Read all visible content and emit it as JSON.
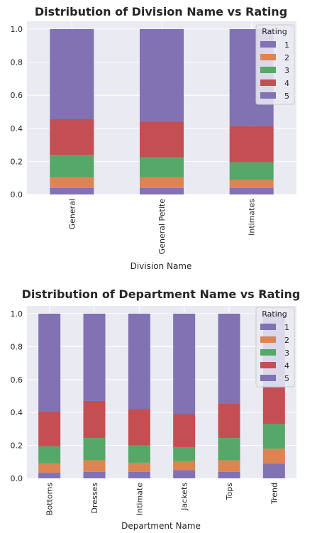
{
  "chart_data": [
    {
      "type": "bar",
      "stacked": true,
      "title": "Distribution of Division Name vs Rating",
      "xlabel": "Division Name",
      "ylabel": "",
      "ylim": [
        0,
        1.0
      ],
      "yticks": [
        "0.0",
        "0.2",
        "0.4",
        "0.6",
        "0.8",
        "1.0"
      ],
      "categories": [
        "General",
        "General Petite",
        "Intimates"
      ],
      "grid": true,
      "legend": {
        "title": "Rating",
        "placement": "top-right",
        "labels": [
          "1",
          "2",
          "3",
          "4",
          "5"
        ]
      },
      "series": [
        {
          "name": "1",
          "color": "#8172b3",
          "values": [
            0.04,
            0.04,
            0.04
          ]
        },
        {
          "name": "2",
          "color": "#dd8452",
          "values": [
            0.065,
            0.065,
            0.05
          ]
        },
        {
          "name": "3",
          "color": "#55a868",
          "values": [
            0.135,
            0.12,
            0.105
          ]
        },
        {
          "name": "4",
          "color": "#c44e52",
          "values": [
            0.215,
            0.215,
            0.22
          ]
        },
        {
          "name": "5",
          "color": "#8172b3",
          "values": [
            0.545,
            0.56,
            0.585
          ]
        }
      ]
    },
    {
      "type": "bar",
      "stacked": true,
      "title": "Distribution of Department Name vs Rating",
      "xlabel": "Department Name",
      "ylabel": "",
      "ylim": [
        0,
        1.0
      ],
      "yticks": [
        "0.0",
        "0.2",
        "0.4",
        "0.6",
        "0.8",
        "1.0"
      ],
      "categories": [
        "Bottoms",
        "Dresses",
        "Intimate",
        "Jackets",
        "Tops",
        "Trend"
      ],
      "grid": true,
      "legend": {
        "title": "Rating",
        "placement": "top-right",
        "labels": [
          "1",
          "2",
          "3",
          "4",
          "5"
        ]
      },
      "series": [
        {
          "name": "1",
          "color": "#8172b3",
          "values": [
            0.035,
            0.04,
            0.04,
            0.05,
            0.04,
            0.09
          ]
        },
        {
          "name": "2",
          "color": "#dd8452",
          "values": [
            0.055,
            0.07,
            0.055,
            0.055,
            0.07,
            0.09
          ]
        },
        {
          "name": "3",
          "color": "#55a868",
          "values": [
            0.105,
            0.135,
            0.105,
            0.085,
            0.135,
            0.15
          ]
        },
        {
          "name": "4",
          "color": "#c44e52",
          "values": [
            0.21,
            0.225,
            0.22,
            0.2,
            0.21,
            0.22
          ]
        },
        {
          "name": "5",
          "color": "#8172b3",
          "values": [
            0.595,
            0.53,
            0.58,
            0.61,
            0.545,
            0.45
          ]
        }
      ]
    }
  ]
}
